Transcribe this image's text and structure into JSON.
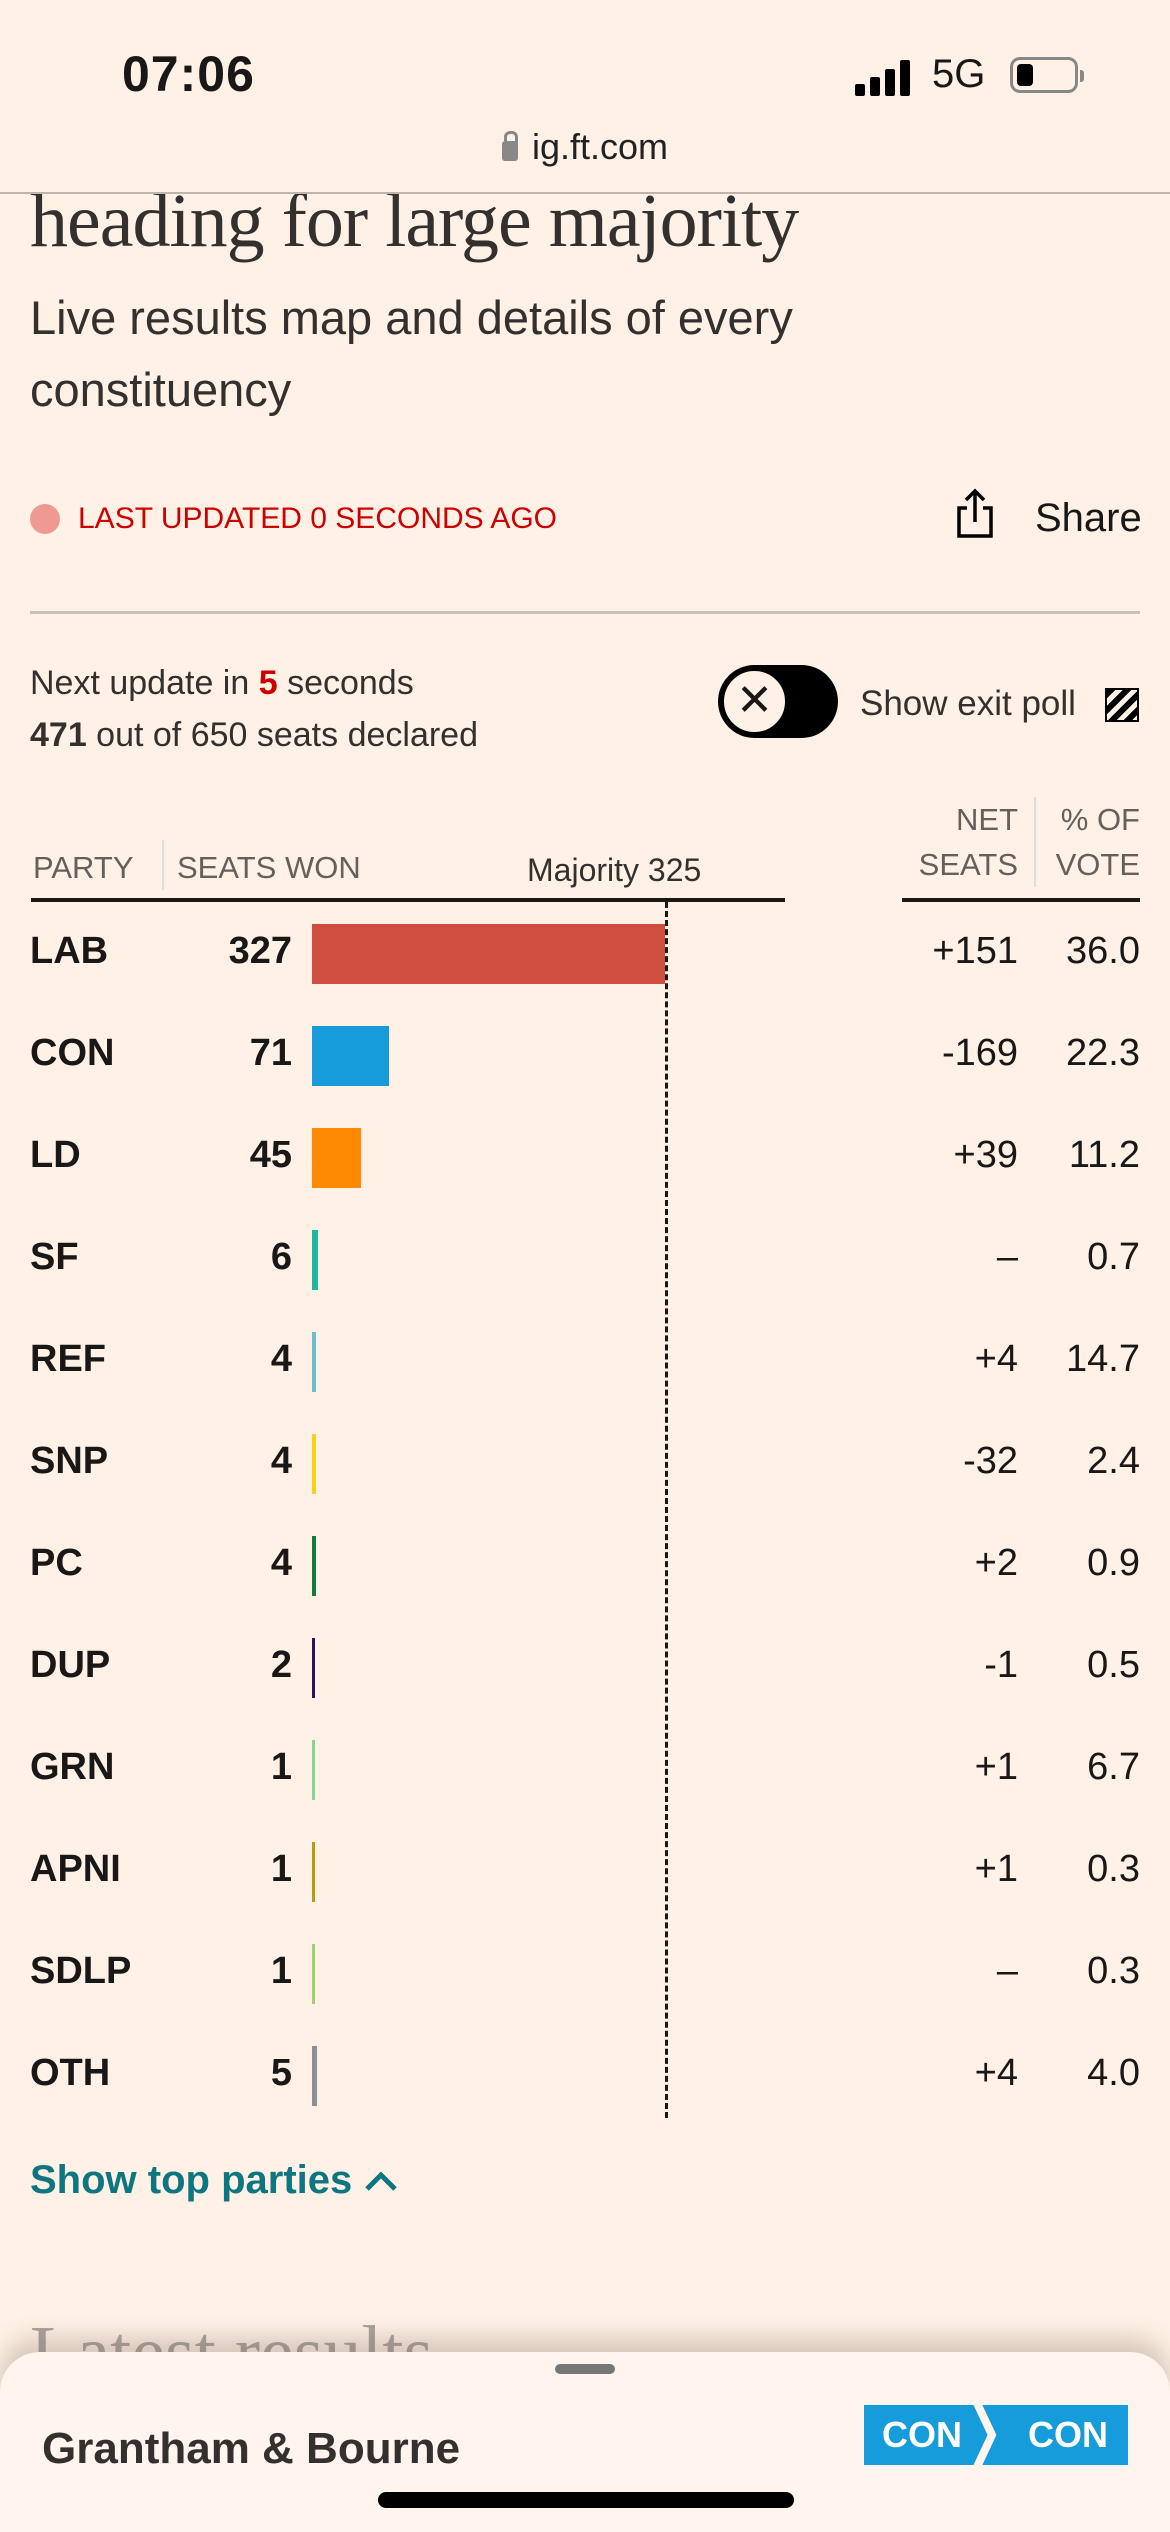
{
  "status_bar": {
    "time": "07:06",
    "network": "5G",
    "battery_level": 0.2
  },
  "browser": {
    "url": "ig.ft.com"
  },
  "article": {
    "headline": "heading for large majority",
    "subtitle": "Live results map and details of every constituency"
  },
  "live": {
    "text": "LAST UPDATED 0 SECONDS AGO",
    "share_label": "Share"
  },
  "update": {
    "prefix": "Next update in ",
    "seconds": "5",
    "suffix": " seconds",
    "declared": "471",
    "declared_suffix": " out of 650 seats declared"
  },
  "exit_poll": {
    "label": "Show exit poll",
    "enabled": false
  },
  "table": {
    "headers": {
      "party": "PARTY",
      "seats_won": "SEATS WON",
      "majority": "Majority 325",
      "net_line1": "NET",
      "net_line2": "SEATS",
      "pct_line1": "% OF",
      "pct_line2": "VOTE"
    },
    "majority": 325,
    "rows": [
      {
        "party": "LAB",
        "seats": 327,
        "net": "+151",
        "pct": "36.0",
        "color": "#cf4d3e"
      },
      {
        "party": "CON",
        "seats": 71,
        "net": "-169",
        "pct": "22.3",
        "color": "#169bdb"
      },
      {
        "party": "LD",
        "seats": 45,
        "net": "+39",
        "pct": "11.2",
        "color": "#fd8a00"
      },
      {
        "party": "SF",
        "seats": 6,
        "net": "–",
        "pct": "0.7",
        "color": "#20b6a0"
      },
      {
        "party": "REF",
        "seats": 4,
        "net": "+4",
        "pct": "14.7",
        "color": "#6cbfcf"
      },
      {
        "party": "SNP",
        "seats": 4,
        "net": "-32",
        "pct": "2.4",
        "color": "#f2d21b"
      },
      {
        "party": "PC",
        "seats": 4,
        "net": "+2",
        "pct": "0.9",
        "color": "#117a3f"
      },
      {
        "party": "DUP",
        "seats": 2,
        "net": "-1",
        "pct": "0.5",
        "color": "#2b1263"
      },
      {
        "party": "GRN",
        "seats": 1,
        "net": "+1",
        "pct": "6.7",
        "color": "#82d595"
      },
      {
        "party": "APNI",
        "seats": 1,
        "net": "+1",
        "pct": "0.3",
        "color": "#b59a12"
      },
      {
        "party": "SDLP",
        "seats": 1,
        "net": "–",
        "pct": "0.3",
        "color": "#9fd36a"
      },
      {
        "party": "OTH",
        "seats": 5,
        "net": "+4",
        "pct": "4.0",
        "color": "#8e8e96"
      }
    ]
  },
  "toggle_parties": {
    "label": "Show top parties"
  },
  "ghost_heading": "Latest results",
  "sheet": {
    "constituency": "Grantham & Bourne",
    "from": "CON",
    "to": "CON",
    "badge_color": "#169bdb"
  }
}
